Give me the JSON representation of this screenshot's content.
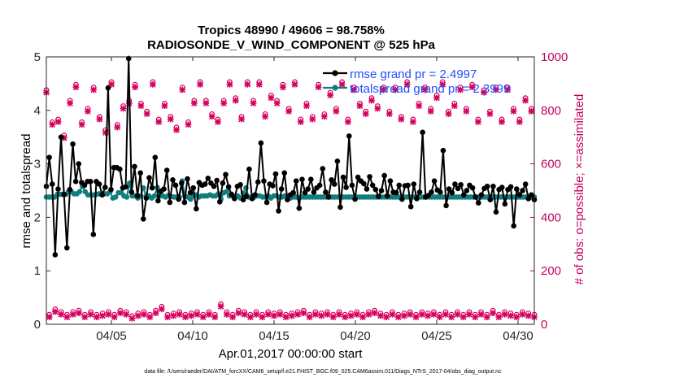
{
  "chart_data": {
    "type": "line",
    "title_line1": "Tropics 48990 / 49606 = 98.758%",
    "title_line2": "RADIOSONDE_V_WIND_COMPONENT @ 525 hPa",
    "xlabel": "Apr.01,2017 00:00:00 start",
    "ylabel_left": "rmse and totalspread",
    "ylabel_right": "# of obs: o=possible; ×=assimilated",
    "footer": "data file: /Users/raeder/DAI/ATM_forcXX/CAM6_setup/f.e21.FHIST_BGC.f09_025.CAM6assim.011/Diags_NTrS_2017-04/obs_diag_output.nc",
    "xlim": [
      1,
      31
    ],
    "ylim_left": [
      0,
      5
    ],
    "ylim_right": [
      0,
      1000
    ],
    "x_ticks": [
      5,
      10,
      15,
      20,
      25,
      30
    ],
    "x_tick_labels": [
      "04/05",
      "04/10",
      "04/15",
      "04/20",
      "04/25",
      "04/30"
    ],
    "y_left_ticks": [
      "0",
      "1",
      "2",
      "3",
      "4",
      "5"
    ],
    "y_right_ticks": [
      "0",
      "200",
      "400",
      "600",
      "800",
      "1000"
    ],
    "colors": {
      "rmse": "#000000",
      "spread": "#117e7e",
      "obs": "#d6005e",
      "legend_text": "#1f4fff",
      "right_axis": "#c4005e"
    },
    "series": [
      {
        "name": "rmse grand pr = 2.4997",
        "values": [
          2.58,
          3.12,
          2.62,
          1.3,
          2.53,
          3.5,
          2.43,
          1.43,
          2.52,
          3.37,
          2.67,
          3.0,
          2.65,
          2.6,
          2.67,
          2.67,
          1.68,
          2.67,
          2.62,
          2.42,
          2.56,
          4.42,
          2.52,
          2.93,
          2.93,
          2.9,
          2.55,
          2.57,
          4.97,
          2.47,
          2.95,
          2.4,
          2.83,
          1.97,
          2.36,
          2.74,
          2.55,
          3.12,
          2.31,
          2.49,
          2.53,
          2.88,
          2.28,
          2.7,
          2.6,
          2.34,
          2.64,
          2.28,
          2.72,
          2.46,
          2.55,
          2.16,
          2.65,
          2.6,
          2.62,
          2.73,
          2.64,
          2.58,
          2.69,
          2.29,
          2.64,
          2.8,
          2.57,
          2.43,
          2.35,
          2.58,
          2.61,
          2.33,
          2.39,
          2.9,
          2.35,
          2.42,
          2.66,
          3.39,
          2.68,
          2.28,
          2.62,
          2.59,
          2.81,
          2.12,
          2.53,
          2.83,
          2.33,
          2.42,
          2.46,
          2.68,
          2.17,
          2.71,
          2.46,
          2.53,
          2.71,
          2.47,
          2.55,
          2.6,
          2.91,
          2.47,
          2.38,
          2.7,
          2.62,
          3.05,
          2.19,
          2.75,
          2.56,
          3.52,
          2.6,
          2.34,
          2.75,
          2.68,
          2.63,
          2.53,
          2.76,
          2.6,
          2.52,
          2.39,
          2.5,
          2.78,
          2.4,
          2.68,
          2.47,
          2.46,
          2.6,
          2.34,
          2.59,
          2.6,
          2.2,
          2.62,
          2.35,
          2.47,
          3.59,
          2.38,
          2.41,
          2.47,
          2.68,
          2.51,
          2.47,
          3.25,
          2.22,
          2.53,
          2.46,
          2.62,
          2.54,
          2.61,
          2.42,
          2.5,
          2.6,
          2.55,
          2.38,
          2.27,
          2.42,
          2.54,
          2.58,
          2.33,
          2.58,
          2.1,
          2.52,
          2.56,
          2.25,
          2.52,
          2.57,
          1.84,
          2.53,
          2.42,
          2.5,
          2.62,
          2.35,
          2.42,
          2.33
        ]
      },
      {
        "name": "totalspread grand pr = 2.3999",
        "values": [
          2.38,
          2.38,
          2.38,
          2.38,
          2.43,
          2.43,
          2.43,
          2.43,
          2.48,
          2.48,
          2.44,
          2.44,
          2.48,
          2.58,
          2.48,
          2.42,
          2.42,
          2.42,
          2.43,
          2.44,
          2.44,
          2.44,
          2.44,
          2.48,
          2.36,
          2.38,
          2.46,
          2.46,
          2.4,
          2.38,
          2.64,
          2.4,
          2.4,
          2.36,
          2.4,
          2.55,
          2.4,
          2.4,
          2.36,
          2.4,
          2.56,
          2.4,
          2.4,
          2.38,
          2.41,
          2.39,
          2.38,
          2.38,
          2.38,
          2.68,
          2.4,
          2.38,
          2.34,
          2.4,
          2.42,
          2.38,
          2.4,
          2.4,
          2.4,
          2.42,
          2.4,
          2.4,
          2.44,
          2.34,
          2.46,
          2.48,
          2.4,
          2.4,
          2.38,
          2.4,
          2.36,
          2.45,
          2.55,
          2.38,
          2.38,
          2.38,
          2.4,
          2.4,
          2.38,
          2.38,
          2.4,
          2.36,
          2.4,
          2.4,
          2.38,
          2.38,
          2.4,
          2.38,
          2.36,
          2.38,
          2.38,
          2.36,
          2.38,
          2.38,
          2.38,
          2.38,
          2.38,
          2.38,
          2.38,
          2.38,
          2.38,
          2.38,
          2.38,
          2.38,
          2.38,
          2.38,
          2.38,
          2.38,
          2.38,
          2.38,
          2.38,
          2.38,
          2.38,
          2.38,
          2.38,
          2.38,
          2.38,
          2.38,
          2.38,
          2.38,
          2.38,
          2.38,
          2.38,
          2.38,
          2.38,
          2.38,
          2.38,
          2.38,
          2.38,
          2.38,
          2.38,
          2.38,
          2.38,
          2.38,
          2.38,
          2.38,
          2.38,
          2.38,
          2.38,
          2.38,
          2.38,
          2.38,
          2.38,
          2.38,
          2.38,
          2.38,
          2.38,
          2.38,
          2.38,
          2.38,
          2.38,
          2.38,
          2.38,
          2.38,
          2.38,
          2.38,
          2.38,
          2.38,
          2.38,
          2.38,
          2.38,
          2.38,
          2.38,
          2.38,
          2.38,
          2.38,
          2.38,
          2.38,
          2.38,
          2.38,
          2.38,
          2.38,
          2.38,
          2.38,
          2.38,
          2.38,
          2.38
        ]
      },
      {
        "name": "obs possible",
        "values": [
          870,
          30,
          750,
          50,
          760,
          40,
          700,
          30,
          830,
          40,
          890,
          45,
          750,
          30,
          800,
          40,
          880,
          30,
          770,
          35,
          720,
          40,
          900,
          30,
          740,
          45,
          810,
          40,
          830,
          25,
          890,
          35,
          820,
          40,
          790,
          30,
          900,
          45,
          760,
          60,
          820,
          30,
          770,
          35,
          730,
          40,
          880,
          30,
          750,
          35,
          830,
          40,
          900,
          30,
          830,
          40,
          780,
          30,
          760,
          70,
          830,
          40,
          900,
          30,
          840,
          45,
          770,
          40,
          900,
          30,
          830,
          40,
          900,
          30,
          780,
          40,
          850,
          35,
          830,
          40,
          890,
          30,
          800,
          35,
          900,
          40,
          760,
          45,
          820,
          30,
          770,
          40,
          890,
          35,
          780,
          40,
          860,
          30,
          800,
          40,
          900,
          30,
          760,
          35,
          880,
          40,
          820,
          30,
          790,
          40,
          840,
          45,
          810,
          35,
          880,
          30,
          790,
          40,
          880,
          30,
          770,
          35,
          900,
          40,
          760,
          30,
          820,
          40,
          880,
          35,
          800,
          40,
          850,
          30,
          900,
          40,
          790,
          30,
          820,
          40,
          880,
          30,
          800,
          40,
          890,
          30,
          760,
          40,
          870,
          30,
          790,
          45,
          880,
          30,
          760,
          40,
          880,
          35,
          800,
          30,
          760,
          40,
          840,
          35,
          800,
          30
        ]
      }
    ]
  }
}
